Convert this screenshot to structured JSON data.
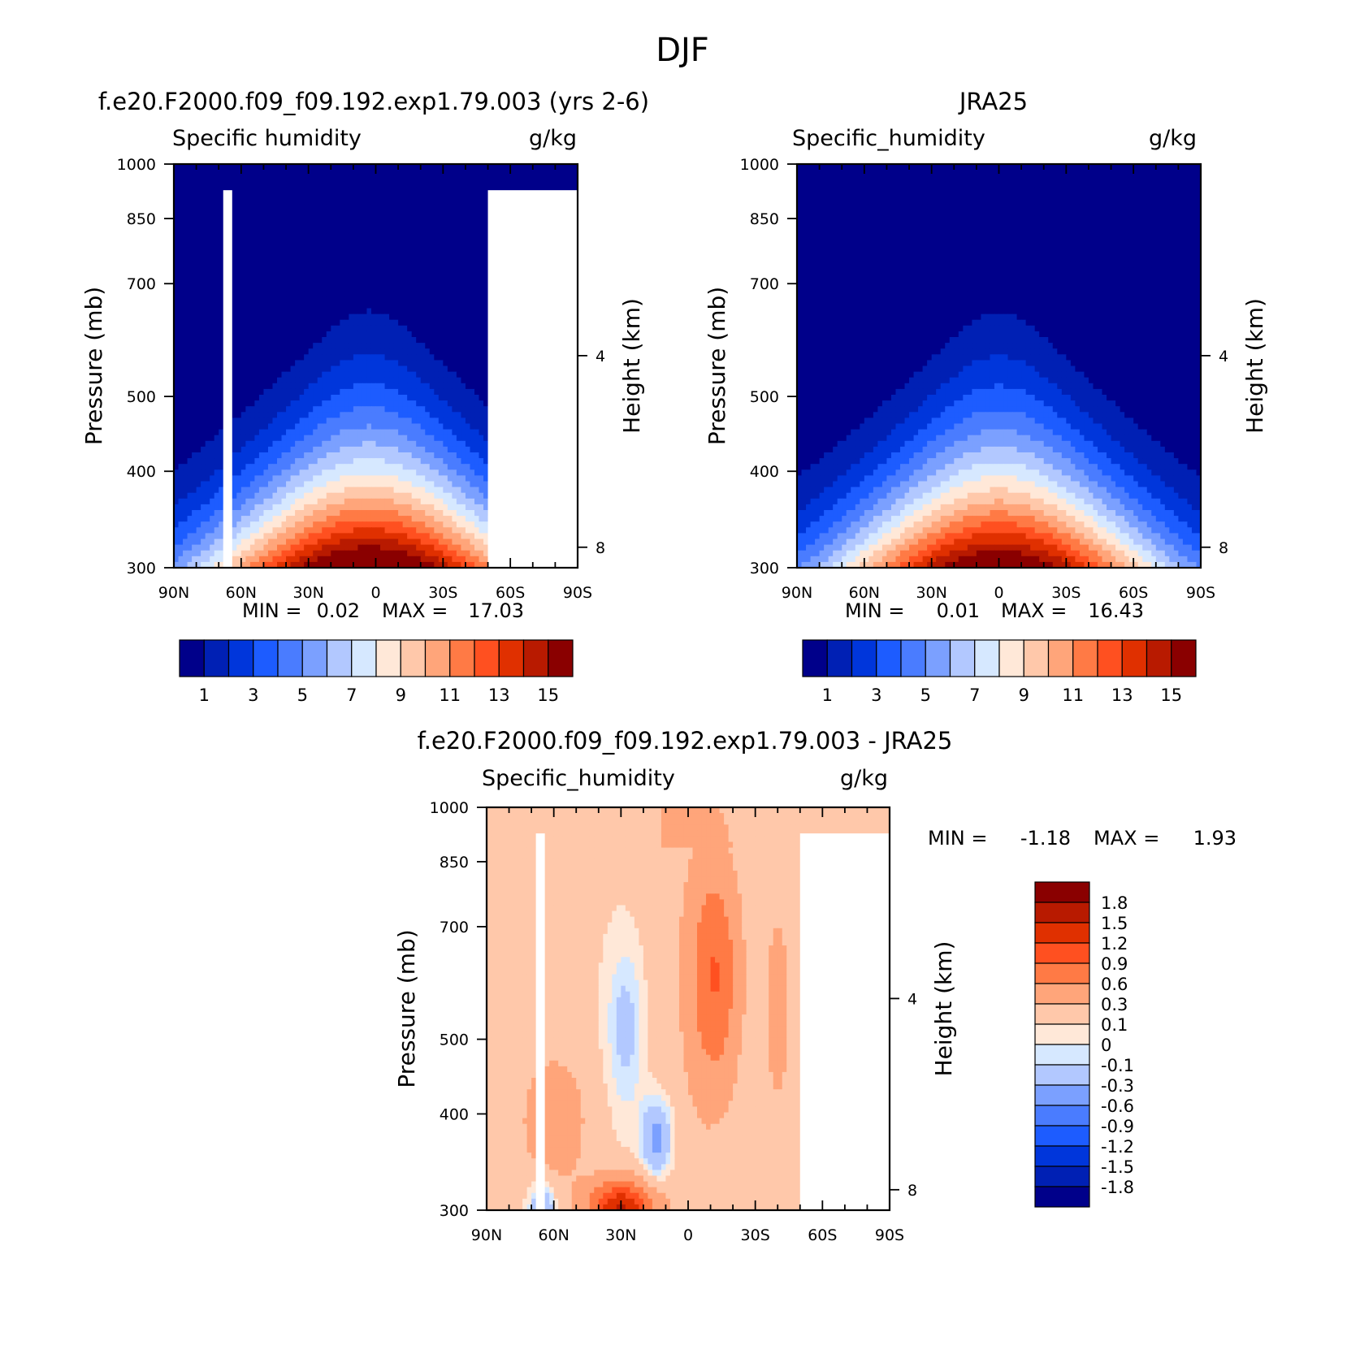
{
  "page_title": "DJF",
  "chart_data": [
    {
      "type": "heatmap",
      "panel_title": "f.e20.F2000.f09_f09.192.exp1.79.003 (yrs 2-6)",
      "left_string": "Specific humidity",
      "right_string": "g/kg",
      "xlabel": "",
      "ylabel": "Pressure (mb)",
      "ylabel_right": "Height (km)",
      "x_ticks": [
        "90N",
        "60N",
        "30N",
        "0",
        "30S",
        "60S",
        "90S"
      ],
      "y_ticks": [
        "300",
        "400",
        "500",
        "700",
        "850",
        "1000"
      ],
      "y_right_ticks": [
        "8",
        "4"
      ],
      "xlim": [
        90,
        -90
      ],
      "ylim": [
        1000,
        300
      ],
      "log_pressure": true,
      "stats": {
        "min_label": "MIN =",
        "min": "0.02",
        "max_label": "MAX =",
        "max": "17.03"
      },
      "field_peak": 17.03,
      "field_center_lat": 3,
      "colorbar": {
        "orientation": "horizontal",
        "levels": [
          1,
          2,
          3,
          4,
          5,
          6,
          7,
          8,
          9,
          10,
          11,
          12,
          13,
          14,
          15
        ],
        "labels": [
          "1",
          "3",
          "5",
          "7",
          "9",
          "11",
          "13",
          "15"
        ],
        "colors": [
          "#00008a",
          "#0020b4",
          "#0036db",
          "#1d5cff",
          "#4a7cff",
          "#7ba0ff",
          "#b2c8ff",
          "#d6e8ff",
          "#ffe8d8",
          "#ffc8aa",
          "#ffa57a",
          "#ff7a45",
          "#ff5020",
          "#e03000",
          "#b81a00",
          "#8a0000"
        ]
      }
    },
    {
      "type": "heatmap",
      "panel_title": "JRA25",
      "left_string": "Specific_humidity",
      "right_string": "g/kg",
      "xlabel": "",
      "ylabel": "Pressure (mb)",
      "ylabel_right": "Height (km)",
      "x_ticks": [
        "90N",
        "60N",
        "30N",
        "0",
        "30S",
        "60S",
        "90S"
      ],
      "y_ticks": [
        "300",
        "400",
        "500",
        "700",
        "850",
        "1000"
      ],
      "y_right_ticks": [
        "8",
        "4"
      ],
      "xlim": [
        90,
        -90
      ],
      "ylim": [
        1000,
        300
      ],
      "log_pressure": true,
      "stats": {
        "min_label": "MIN =",
        "min": "0.01",
        "max_label": "MAX =",
        "max": "16.43"
      },
      "field_peak": 16.43,
      "field_center_lat": 0,
      "colorbar": {
        "orientation": "horizontal",
        "levels": [
          1,
          2,
          3,
          4,
          5,
          6,
          7,
          8,
          9,
          10,
          11,
          12,
          13,
          14,
          15
        ],
        "labels": [
          "1",
          "3",
          "5",
          "7",
          "9",
          "11",
          "13",
          "15"
        ],
        "colors": [
          "#00008a",
          "#0020b4",
          "#0036db",
          "#1d5cff",
          "#4a7cff",
          "#7ba0ff",
          "#b2c8ff",
          "#d6e8ff",
          "#ffe8d8",
          "#ffc8aa",
          "#ffa57a",
          "#ff7a45",
          "#ff5020",
          "#e03000",
          "#b81a00",
          "#8a0000"
        ]
      }
    },
    {
      "type": "heatmap",
      "panel_title": "f.e20.F2000.f09_f09.192.exp1.79.003 - JRA25",
      "left_string": "Specific_humidity",
      "right_string": "g/kg",
      "xlabel": "",
      "ylabel": "Pressure (mb)",
      "ylabel_right": "Height (km)",
      "x_ticks": [
        "90N",
        "60N",
        "30N",
        "0",
        "30S",
        "60S",
        "90S"
      ],
      "y_ticks": [
        "300",
        "400",
        "500",
        "700",
        "850",
        "1000"
      ],
      "y_right_ticks": [
        "8",
        "4"
      ],
      "xlim": [
        90,
        -90
      ],
      "ylim": [
        1000,
        300
      ],
      "log_pressure": true,
      "stats": {
        "min_label": "MIN =",
        "min": "-1.18",
        "max_label": "MAX =",
        "max": "1.93"
      },
      "colorbar": {
        "orientation": "vertical",
        "levels": [
          -1.8,
          -1.5,
          -1.2,
          -0.9,
          -0.6,
          -0.3,
          -0.1,
          0,
          0.1,
          0.3,
          0.6,
          0.9,
          1.2,
          1.5,
          1.8
        ],
        "labels": [
          "1.8",
          "1.5",
          "1.2",
          "0.9",
          "0.6",
          "0.3",
          "0.1",
          "0",
          "-0.1",
          "-0.3",
          "-0.6",
          "-0.9",
          "-1.2",
          "-1.5",
          "-1.8"
        ],
        "colors": [
          "#00008a",
          "#0020b4",
          "#0036db",
          "#1d5cff",
          "#4a7cff",
          "#7ba0ff",
          "#b2c8ff",
          "#d6e8ff",
          "#ffe8d8",
          "#ffc8aa",
          "#ffa57a",
          "#ff7a45",
          "#ff5020",
          "#e03000",
          "#b81a00",
          "#8a0000"
        ]
      }
    }
  ]
}
